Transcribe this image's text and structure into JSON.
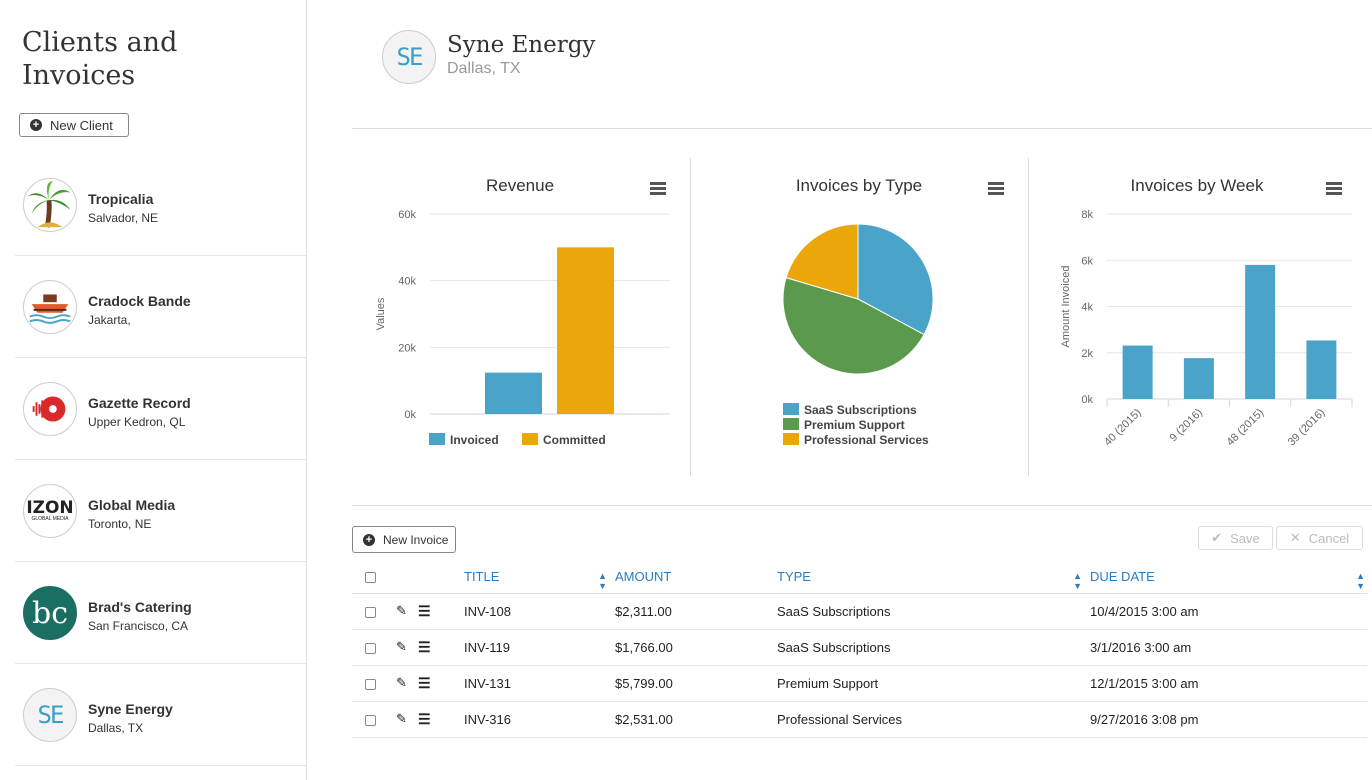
{
  "app": {
    "title": "Clients and Invoices",
    "new_client_label": "New Client"
  },
  "clients": [
    {
      "name": "Tropicalia",
      "location": "Salvador, NE",
      "logo": "palm-tree-logo"
    },
    {
      "name": "Cradock Bande",
      "location": "Jakarta,",
      "logo": "ship-logo"
    },
    {
      "name": "Gazette Record",
      "location": "Upper Kedron, QL",
      "logo": "record-logo"
    },
    {
      "name": "Global Media",
      "location": "Toronto, NE",
      "logo": "izon-logo",
      "logo_text": "IZON",
      "logo_sub": "GLOBAL MEDIA"
    },
    {
      "name": "Brad's Catering",
      "location": "San Francisco, CA",
      "logo": "bc-logo",
      "logo_text": "bc"
    },
    {
      "name": "Syne Energy",
      "location": "Dallas, TX",
      "logo": "se-logo",
      "logo_text": "SE"
    }
  ],
  "selected_client": {
    "name": "Syne Energy",
    "location": "Dallas, TX",
    "logo_text": "SE"
  },
  "colors": {
    "blue": "#4aa3c9",
    "green": "#5b9a4d",
    "orange": "#eba60a",
    "link": "#2a7bbf"
  },
  "chart_data": [
    {
      "type": "bar",
      "title": "Revenue",
      "ylabel": "Values",
      "ylim": [
        0,
        60000
      ],
      "yticks": [
        "0k",
        "20k",
        "40k",
        "60k"
      ],
      "series": [
        {
          "name": "Invoiced",
          "value": 12407
        },
        {
          "name": "Committed",
          "value": 50000
        }
      ],
      "legend": "bottom"
    },
    {
      "type": "pie",
      "title": "Invoices by Type",
      "slices": [
        {
          "name": "SaaS Subscriptions",
          "value": 4077
        },
        {
          "name": "Premium Support",
          "value": 5799
        },
        {
          "name": "Professional Services",
          "value": 2531
        }
      ],
      "legend": "bottom"
    },
    {
      "type": "bar",
      "title": "Invoices by Week",
      "ylabel": "Amount Invoiced",
      "ylim": [
        0,
        8000
      ],
      "yticks": [
        "0k",
        "2k",
        "4k",
        "6k",
        "8k"
      ],
      "categories": [
        "40 (2015)",
        "9 (2016)",
        "48 (2015)",
        "39 (2016)"
      ],
      "values": [
        2311,
        1766,
        5799,
        2531
      ]
    }
  ],
  "invoices": {
    "new_label": "New Invoice",
    "save_label": "Save",
    "cancel_label": "Cancel",
    "headers": {
      "title": "TITLE",
      "amount": "AMOUNT",
      "type": "TYPE",
      "due": "DUE DATE"
    },
    "rows": [
      {
        "title": "INV-108",
        "amount": "$2,311.00",
        "type": "SaaS Subscriptions",
        "due": "10/4/2015 3:00 am"
      },
      {
        "title": "INV-119",
        "amount": "$1,766.00",
        "type": "SaaS Subscriptions",
        "due": "3/1/2016 3:00 am"
      },
      {
        "title": "INV-131",
        "amount": "$5,799.00",
        "type": "Premium Support",
        "due": "12/1/2015 3:00 am"
      },
      {
        "title": "INV-316",
        "amount": "$2,531.00",
        "type": "Professional Services",
        "due": "9/27/2016 3:08 pm"
      }
    ]
  }
}
